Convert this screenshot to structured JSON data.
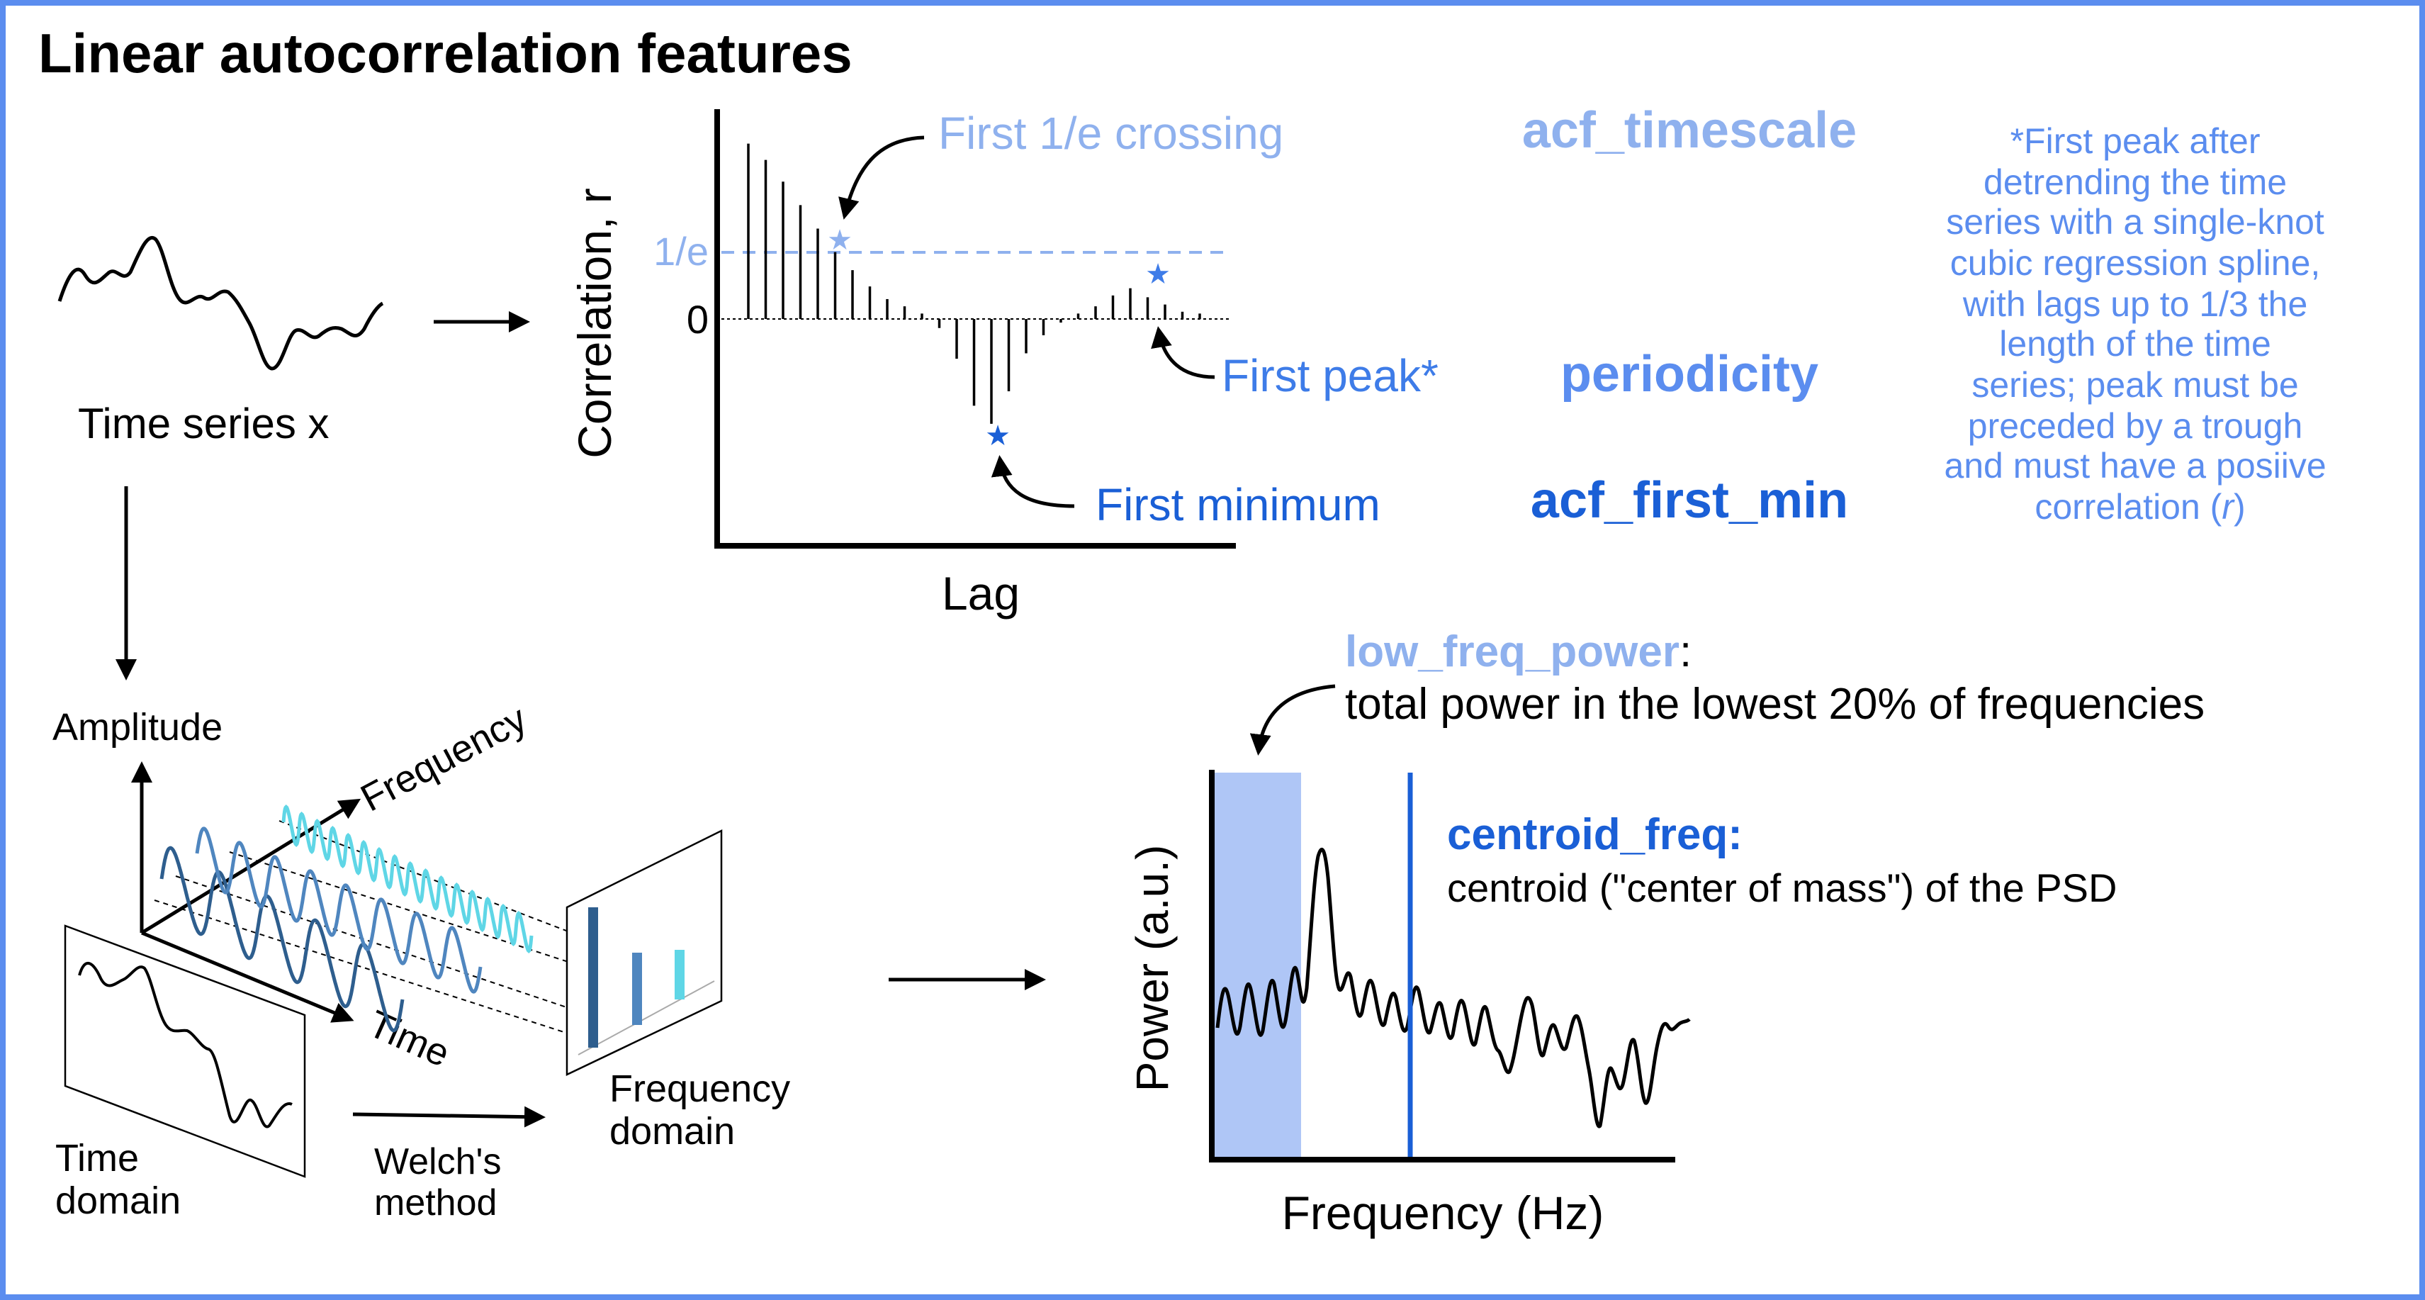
{
  "title": "Linear autocorrelation features",
  "colors": {
    "light_blue": "#8FB1EE",
    "mid_blue": "#5B8DEF",
    "dark_blue": "#1A5FD6",
    "band_fill": "#AFC6F6",
    "teal": "#5FD6E6",
    "steel": "#4F86BF",
    "navy": "#2E5E8E"
  },
  "time_series": {
    "label": "Time series x"
  },
  "acf": {
    "y_axis_label": "Correlation, r",
    "x_axis_label": "Lag",
    "tick_1e": "1/e",
    "tick_0": "0",
    "annot_crossing": "First 1/e crossing",
    "annot_peak": "First peak*",
    "annot_minimum": "First minimum",
    "lag_values": [
      0.97,
      0.88,
      0.76,
      0.63,
      0.5,
      0.37,
      0.27,
      0.18,
      0.11,
      0.07,
      0.03,
      -0.05,
      -0.22,
      -0.48,
      -0.58,
      -0.4,
      -0.19,
      -0.09,
      -0.02,
      0.03,
      0.07,
      0.13,
      0.17,
      0.12,
      0.08,
      0.04,
      0.03
    ]
  },
  "features": {
    "acf_timescale": "acf_timescale",
    "periodicity": "periodicity",
    "acf_first_min": "acf_first_min"
  },
  "footnote": [
    "*First peak after",
    "detrending the time",
    "series with a single-knot",
    "cubic regression spline,",
    "with lags up to 1/3 the",
    "length of the time",
    "series; peak must be",
    "preceded by a trough",
    "and must have a posiive",
    "correlation (",
    "r",
    ")"
  ],
  "fourier": {
    "amplitude_label": "Amplitude",
    "frequency_axis_label": "Frequency",
    "time_axis_label": "Time",
    "time_domain_line1": "Time",
    "time_domain_line2": "domain",
    "welch_line1": "Welch's",
    "welch_line2": "method",
    "freq_domain_line1": "Frequency",
    "freq_domain_line2": "domain"
  },
  "psd": {
    "y_axis_label": "Power (a.u.)",
    "x_axis_label": "Frequency (Hz)",
    "low_freq_name": "low_freq_power",
    "low_freq_colon": ":",
    "low_freq_desc": "total power in the lowest 20% of frequencies",
    "centroid_name": "centroid_freq:",
    "centroid_desc": "centroid (\"center of mass\") of the PSD"
  }
}
